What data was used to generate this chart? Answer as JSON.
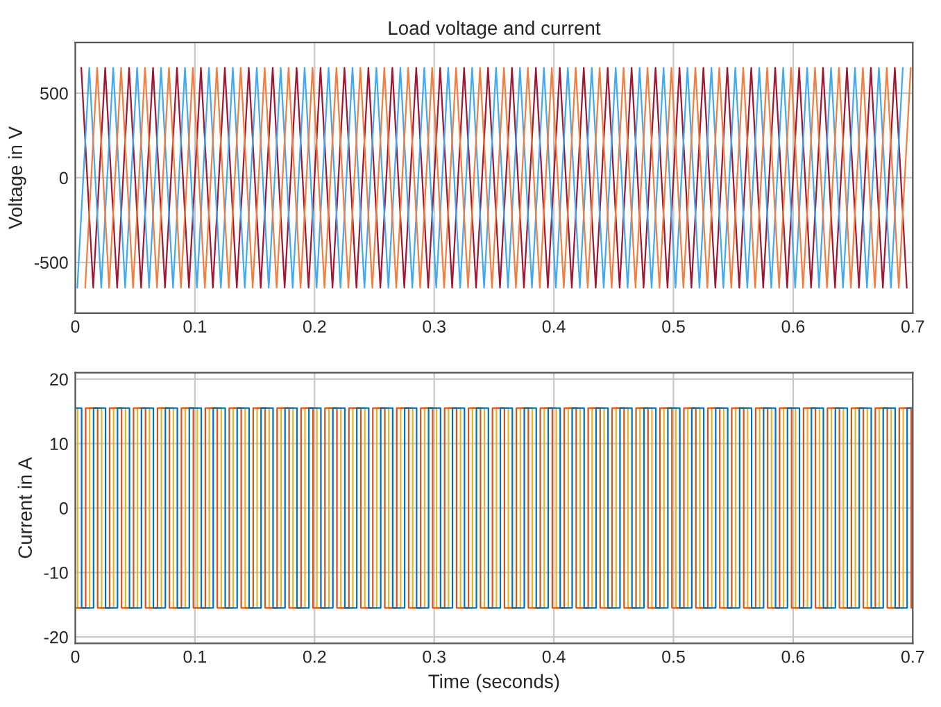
{
  "chart_data": [
    {
      "type": "line",
      "title": "Load voltage and current",
      "ylabel": "Voltage in V",
      "xlim": [
        0,
        0.7
      ],
      "xticks": [
        0,
        0.1,
        0.2,
        0.3,
        0.4,
        0.5,
        0.6,
        0.7
      ],
      "ylim": [
        -800,
        800
      ],
      "yticks": [
        -500,
        0,
        500
      ],
      "grid": true,
      "series": [
        {
          "color": "#a2142f",
          "x": [
            0.005,
            0.015,
            0.025,
            0.035,
            0.045,
            0.055,
            0.065,
            0.075,
            0.085,
            0.095,
            0.105,
            0.115,
            0.125,
            0.135,
            0.145,
            0.155,
            0.165,
            0.175,
            0.185,
            0.195,
            0.205,
            0.215,
            0.225,
            0.235,
            0.245,
            0.255,
            0.265,
            0.275,
            0.285,
            0.295,
            0.305,
            0.315,
            0.325,
            0.335,
            0.345,
            0.355,
            0.365,
            0.375,
            0.385,
            0.395,
            0.405,
            0.415,
            0.425,
            0.435,
            0.445,
            0.455,
            0.465,
            0.475,
            0.485,
            0.495,
            0.505,
            0.515,
            0.525,
            0.535,
            0.545,
            0.555,
            0.565,
            0.575,
            0.585,
            0.595,
            0.605,
            0.615,
            0.625,
            0.635,
            0.645,
            0.655,
            0.665,
            0.675,
            0.685,
            0.695
          ],
          "values": [
            650,
            -650,
            650,
            -650,
            650,
            -650,
            650,
            -650,
            650,
            -650,
            650,
            -650,
            650,
            -650,
            650,
            -650,
            650,
            -650,
            650,
            -650,
            650,
            -650,
            650,
            -650,
            650,
            -650,
            650,
            -650,
            650,
            -650,
            650,
            -650,
            650,
            -650,
            650,
            -650,
            650,
            -650,
            650,
            -650,
            650,
            -650,
            650,
            -650,
            650,
            -650,
            650,
            -650,
            650,
            -650,
            650,
            -650,
            650,
            -650,
            650,
            -650,
            650,
            -650,
            650,
            -650,
            650,
            -650,
            650,
            -650,
            650,
            -650,
            650,
            -650,
            650,
            -650
          ]
        },
        {
          "color": "#3fa9f5",
          "x": [
            0.0017,
            0.0117,
            0.0217,
            0.0317,
            0.0417,
            0.0517,
            0.0617,
            0.0717,
            0.0817,
            0.0917,
            0.1017,
            0.1117,
            0.1217,
            0.1317,
            0.1417,
            0.1517,
            0.1617,
            0.1717,
            0.1817,
            0.1917,
            0.2017,
            0.2117,
            0.2217,
            0.2317,
            0.2417,
            0.2517,
            0.2617,
            0.2717,
            0.2817,
            0.2917,
            0.3017,
            0.3117,
            0.3217,
            0.3317,
            0.3417,
            0.3517,
            0.3617,
            0.3717,
            0.3817,
            0.3917,
            0.4017,
            0.4117,
            0.4217,
            0.4317,
            0.4417,
            0.4517,
            0.4617,
            0.4717,
            0.4817,
            0.4917,
            0.5017,
            0.5117,
            0.5217,
            0.5317,
            0.5417,
            0.5517,
            0.5617,
            0.5717,
            0.5817,
            0.5917,
            0.6017,
            0.6117,
            0.6217,
            0.6317,
            0.6417,
            0.6517,
            0.6617,
            0.6717,
            0.6817,
            0.6917
          ],
          "values": [
            -650,
            650,
            -650,
            650,
            -650,
            650,
            -650,
            650,
            -650,
            650,
            -650,
            650,
            -650,
            650,
            -650,
            650,
            -650,
            650,
            -650,
            650,
            -650,
            650,
            -650,
            650,
            -650,
            650,
            -650,
            650,
            -650,
            650,
            -650,
            650,
            -650,
            650,
            -650,
            650,
            -650,
            650,
            -650,
            650,
            -650,
            650,
            -650,
            650,
            -650,
            650,
            -650,
            650,
            -650,
            650,
            -650,
            650,
            -650,
            650,
            -650,
            650,
            -650,
            650,
            -650,
            650,
            -650,
            650,
            -650,
            650,
            -650,
            650,
            -650,
            650,
            -650,
            650
          ]
        },
        {
          "color": "#f47c3c",
          "x": [
            0.0083,
            0.0183,
            0.0283,
            0.0383,
            0.0483,
            0.0583,
            0.0683,
            0.0783,
            0.0883,
            0.0983,
            0.1083,
            0.1183,
            0.1283,
            0.1383,
            0.1483,
            0.1583,
            0.1683,
            0.1783,
            0.1883,
            0.1983,
            0.2083,
            0.2183,
            0.2283,
            0.2383,
            0.2483,
            0.2583,
            0.2683,
            0.2783,
            0.2883,
            0.2983,
            0.3083,
            0.3183,
            0.3283,
            0.3383,
            0.3483,
            0.3583,
            0.3683,
            0.3783,
            0.3883,
            0.3983,
            0.4083,
            0.4183,
            0.4283,
            0.4383,
            0.4483,
            0.4583,
            0.4683,
            0.4783,
            0.4883,
            0.4983,
            0.5083,
            0.5183,
            0.5283,
            0.5383,
            0.5483,
            0.5583,
            0.5683,
            0.5783,
            0.5883,
            0.5983,
            0.6083,
            0.6183,
            0.6283,
            0.6383,
            0.6483,
            0.6583,
            0.6683,
            0.6783,
            0.6883,
            0.6983
          ],
          "values": [
            -650,
            650,
            -650,
            650,
            -650,
            650,
            -650,
            650,
            -650,
            650,
            -650,
            650,
            -650,
            650,
            -650,
            650,
            -650,
            650,
            -650,
            650,
            -650,
            650,
            -650,
            650,
            -650,
            650,
            -650,
            650,
            -650,
            650,
            -650,
            650,
            -650,
            650,
            -650,
            650,
            -650,
            650,
            -650,
            650,
            -650,
            650,
            -650,
            650,
            -650,
            650,
            -650,
            650,
            -650,
            650,
            -650,
            650,
            -650,
            650,
            -650,
            650,
            -650,
            650,
            -650,
            650,
            -650,
            650,
            -650,
            650,
            -650,
            650,
            -650,
            650,
            -650,
            650
          ]
        }
      ]
    },
    {
      "type": "step",
      "xlabel": "Time (seconds)",
      "ylabel": "Current in A",
      "xlim": [
        0,
        0.7
      ],
      "xticks": [
        0,
        0.1,
        0.2,
        0.3,
        0.4,
        0.5,
        0.6,
        0.7
      ],
      "ylim": [
        -21,
        21
      ],
      "yticks": [
        -20,
        -10,
        0,
        10,
        20
      ],
      "grid": true,
      "series": [
        {
          "color": "#edb120",
          "x": [
            0,
            0.002,
            0.012,
            0.022,
            0.032,
            0.042,
            0.052,
            0.062,
            0.072,
            0.082,
            0.092,
            0.102,
            0.112,
            0.122,
            0.132,
            0.142,
            0.152,
            0.162,
            0.172,
            0.182,
            0.192,
            0.202,
            0.212,
            0.222,
            0.232,
            0.242,
            0.252,
            0.262,
            0.272,
            0.282,
            0.292,
            0.302,
            0.312,
            0.322,
            0.332,
            0.342,
            0.352,
            0.362,
            0.372,
            0.382,
            0.392,
            0.402,
            0.412,
            0.422,
            0.432,
            0.442,
            0.452,
            0.462,
            0.472,
            0.482,
            0.492,
            0.502,
            0.512,
            0.522,
            0.532,
            0.542,
            0.552,
            0.562,
            0.572,
            0.582,
            0.592,
            0.602,
            0.612,
            0.622,
            0.632,
            0.642,
            0.652,
            0.662,
            0.672,
            0.682,
            0.692,
            0.7
          ],
          "values": [
            15.5,
            -15.5,
            15.5,
            -15.5,
            15.5,
            -15.5,
            15.5,
            -15.5,
            15.5,
            -15.5,
            15.5,
            -15.5,
            15.5,
            -15.5,
            15.5,
            -15.5,
            15.5,
            -15.5,
            15.5,
            -15.5,
            15.5,
            -15.5,
            15.5,
            -15.5,
            15.5,
            -15.5,
            15.5,
            -15.5,
            15.5,
            -15.5,
            15.5,
            -15.5,
            15.5,
            -15.5,
            15.5,
            -15.5,
            15.5,
            -15.5,
            15.5,
            -15.5,
            15.5,
            -15.5,
            15.5,
            -15.5,
            15.5,
            -15.5,
            15.5,
            -15.5,
            15.5,
            -15.5,
            15.5,
            -15.5,
            15.5,
            -15.5,
            15.5,
            -15.5,
            15.5,
            -15.5,
            15.5,
            -15.5,
            15.5,
            -15.5,
            15.5,
            -15.5,
            15.5,
            -15.5,
            15.5,
            -15.5,
            15.5,
            -15.5,
            15.5,
            15.5
          ]
        },
        {
          "color": "#d95319",
          "x": [
            0,
            0.0087,
            0.0187,
            0.0287,
            0.0387,
            0.0487,
            0.0587,
            0.0687,
            0.0787,
            0.0887,
            0.0987,
            0.1087,
            0.1187,
            0.1287,
            0.1387,
            0.1487,
            0.1587,
            0.1687,
            0.1787,
            0.1887,
            0.1987,
            0.2087,
            0.2187,
            0.2287,
            0.2387,
            0.2487,
            0.2587,
            0.2687,
            0.2787,
            0.2887,
            0.2987,
            0.3087,
            0.3187,
            0.3287,
            0.3387,
            0.3487,
            0.3587,
            0.3687,
            0.3787,
            0.3887,
            0.3987,
            0.4087,
            0.4187,
            0.4287,
            0.4387,
            0.4487,
            0.4587,
            0.4687,
            0.4787,
            0.4887,
            0.4987,
            0.5087,
            0.5187,
            0.5287,
            0.5387,
            0.5487,
            0.5587,
            0.5687,
            0.5787,
            0.5887,
            0.5987,
            0.6087,
            0.6187,
            0.6287,
            0.6387,
            0.6487,
            0.6587,
            0.6687,
            0.6787,
            0.6887,
            0.6987,
            0.7
          ],
          "values": [
            -15.5,
            15.5,
            -15.5,
            15.5,
            -15.5,
            15.5,
            -15.5,
            15.5,
            -15.5,
            15.5,
            -15.5,
            15.5,
            -15.5,
            15.5,
            -15.5,
            15.5,
            -15.5,
            15.5,
            -15.5,
            15.5,
            -15.5,
            15.5,
            -15.5,
            15.5,
            -15.5,
            15.5,
            -15.5,
            15.5,
            -15.5,
            15.5,
            -15.5,
            15.5,
            -15.5,
            15.5,
            -15.5,
            15.5,
            -15.5,
            15.5,
            -15.5,
            15.5,
            -15.5,
            15.5,
            -15.5,
            15.5,
            -15.5,
            15.5,
            -15.5,
            15.5,
            -15.5,
            15.5,
            -15.5,
            15.5,
            -15.5,
            15.5,
            -15.5,
            15.5,
            -15.5,
            15.5,
            -15.5,
            15.5,
            -15.5,
            15.5,
            -15.5,
            15.5,
            -15.5,
            15.5,
            -15.5,
            15.5,
            -15.5,
            15.5,
            -15.5,
            -15.5
          ]
        },
        {
          "color": "#0072bd",
          "x": [
            0,
            0.0053,
            0.0153,
            0.0253,
            0.0353,
            0.0453,
            0.0553,
            0.0653,
            0.0753,
            0.0853,
            0.0953,
            0.1053,
            0.1153,
            0.1253,
            0.1353,
            0.1453,
            0.1553,
            0.1653,
            0.1753,
            0.1853,
            0.1953,
            0.2053,
            0.2153,
            0.2253,
            0.2353,
            0.2453,
            0.2553,
            0.2653,
            0.2753,
            0.2853,
            0.2953,
            0.3053,
            0.3153,
            0.3253,
            0.3353,
            0.3453,
            0.3553,
            0.3653,
            0.3753,
            0.3853,
            0.3953,
            0.4053,
            0.4153,
            0.4253,
            0.4353,
            0.4453,
            0.4553,
            0.4653,
            0.4753,
            0.4853,
            0.4953,
            0.5053,
            0.5153,
            0.5253,
            0.5353,
            0.5453,
            0.5553,
            0.5653,
            0.5753,
            0.5853,
            0.5953,
            0.6053,
            0.6153,
            0.6253,
            0.6353,
            0.6453,
            0.6553,
            0.6653,
            0.6753,
            0.6853,
            0.6953,
            0.7
          ],
          "values": [
            15.5,
            -15.5,
            15.5,
            -15.5,
            15.5,
            -15.5,
            15.5,
            -15.5,
            15.5,
            -15.5,
            15.5,
            -15.5,
            15.5,
            -15.5,
            15.5,
            -15.5,
            15.5,
            -15.5,
            15.5,
            -15.5,
            15.5,
            -15.5,
            15.5,
            -15.5,
            15.5,
            -15.5,
            15.5,
            -15.5,
            15.5,
            -15.5,
            15.5,
            -15.5,
            15.5,
            -15.5,
            15.5,
            -15.5,
            15.5,
            -15.5,
            15.5,
            -15.5,
            15.5,
            -15.5,
            15.5,
            -15.5,
            15.5,
            -15.5,
            15.5,
            -15.5,
            15.5,
            -15.5,
            15.5,
            -15.5,
            15.5,
            -15.5,
            15.5,
            -15.5,
            15.5,
            -15.5,
            15.5,
            -15.5,
            15.5,
            -15.5,
            15.5,
            -15.5,
            15.5,
            -15.5,
            15.5,
            -15.5,
            15.5,
            -15.5,
            15.5,
            15.5
          ]
        }
      ]
    }
  ]
}
